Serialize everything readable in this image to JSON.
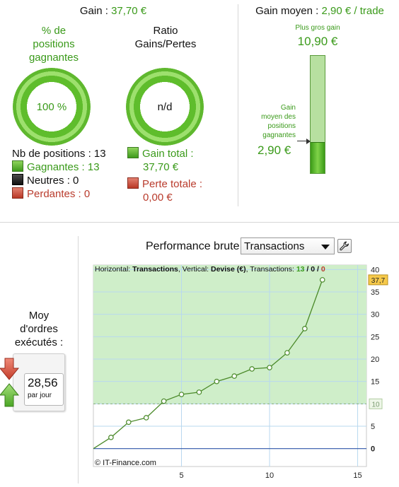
{
  "summary": {
    "gain_label": "Gain : ",
    "gain_value": "37,70 €",
    "win_col_title": [
      "% de",
      "positions",
      "gagnantes"
    ],
    "win_pct": "100 %",
    "ratio_col_title": [
      "Ratio",
      "Gains/Pertes"
    ],
    "ratio_value": "n/d",
    "nb_positions": "Nb de positions : 13",
    "gagnantes": "Gagnantes : 13",
    "neutres": "Neutres : 0",
    "perdantes": "Perdantes : 0",
    "gain_total_label": "Gain total :",
    "gain_total_value": "37,70 €",
    "perte_totale_label": "Perte totale :",
    "perte_totale_value": "0,00 €"
  },
  "gain_moyen": {
    "label": "Gain moyen : ",
    "value": "2,90 € / trade",
    "max_label": "Plus gros gain",
    "max_value": "10,90 €",
    "avg_label": [
      "Gain",
      "moyen des",
      "positions",
      "gagnantes"
    ],
    "avg_value": "2,90 €",
    "level_fraction": 0.266
  },
  "orders": {
    "label": [
      "Moy",
      "d'ordres",
      "exécutés :"
    ],
    "value": "28,56",
    "unit": "par jour"
  },
  "chart_header": {
    "title": "Performance brute",
    "select_value": "Transactions"
  },
  "colors": {
    "accent_green": "#3a9a1a",
    "loss_red": "#b93b2c",
    "line_green": "#4b8a2a",
    "plot_fill": "#cfeec9",
    "zero_line": "#2f56a8"
  },
  "chart_data": {
    "type": "line",
    "info": {
      "h_label": "Horizontal: ",
      "h_value": "Transactions",
      "v_label": ", Vertical: ",
      "v_value": "Devise (€)",
      "t_label": ", Transactions: ",
      "t_win": "13",
      "t_sep1": " / ",
      "t_neutral": "0",
      "t_sep2": " / ",
      "t_loss": "0"
    },
    "x": [
      0,
      1,
      2,
      3,
      4,
      5,
      6,
      7,
      8,
      9,
      10,
      11,
      12,
      13
    ],
    "y": [
      0,
      2.5,
      5.9,
      6.9,
      10.6,
      12.1,
      12.6,
      15.0,
      16.2,
      17.8,
      18.1,
      21.4,
      26.8,
      37.7
    ],
    "xlim": [
      0,
      15.5
    ],
    "ylim": [
      -4,
      41
    ],
    "xticks": [
      5,
      10,
      15
    ],
    "yticks": [
      0,
      5,
      10,
      15,
      20,
      25,
      30,
      35,
      40
    ],
    "reference_value": 10,
    "reference_label": "10",
    "last_value_label": "37,7",
    "copyright": "© IT-Finance.com",
    "grid": true
  }
}
